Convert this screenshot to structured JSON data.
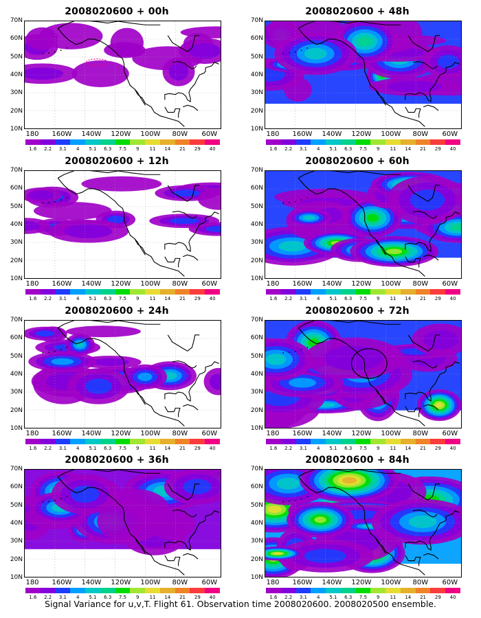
{
  "panels": [
    {
      "title": "2008020600 + 00h",
      "level": 0.15,
      "circle": "none"
    },
    {
      "title": "2008020600 + 48h",
      "level": 0.55,
      "circle": "none"
    },
    {
      "title": "2008020600 + 12h",
      "level": 0.25,
      "circle": "none"
    },
    {
      "title": "2008020600 + 60h",
      "level": 0.65,
      "circle": "none"
    },
    {
      "title": "2008020600 + 24h",
      "level": 0.38,
      "circle": "none"
    },
    {
      "title": "2008020600 + 72h",
      "level": 0.72,
      "circle": "black"
    },
    {
      "title": "2008020600 + 36h",
      "level": 0.48,
      "circle": "none"
    },
    {
      "title": "2008020600 + 84h",
      "level": 0.82,
      "circle": "none"
    }
  ],
  "lat_ticks": [
    "70N",
    "60N",
    "50N",
    "40N",
    "30N",
    "20N",
    "10N"
  ],
  "lon_ticks": [
    "180",
    "160W",
    "140W",
    "120W",
    "100W",
    "80W",
    "60W"
  ],
  "colorbar": {
    "labels": [
      "1.6",
      "2.2",
      "3.1",
      "4",
      "5.1",
      "6.3",
      "7.5",
      "9",
      "11",
      "14",
      "21",
      "29",
      "40"
    ],
    "colors": [
      "#a000c8",
      "#8200dc",
      "#1e3cff",
      "#00a0ff",
      "#00c8c8",
      "#00d28c",
      "#00dc00",
      "#a0e632",
      "#e6dc32",
      "#e6af2d",
      "#f08228",
      "#fa3c3c",
      "#f00082"
    ]
  },
  "caption": "Signal Variance for u,v,T. Flight 61. Observation time 2008020600. 2008020500 ensemble."
}
